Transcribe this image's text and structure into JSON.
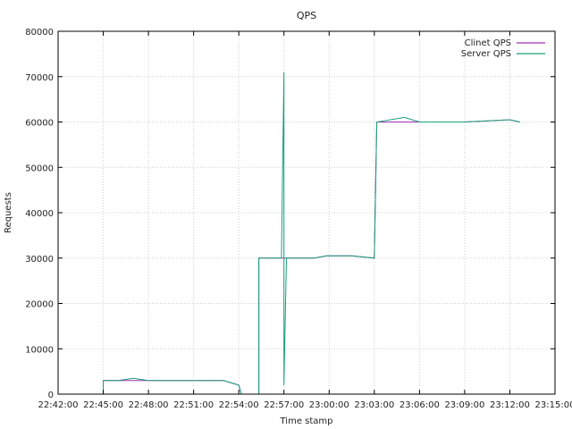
{
  "chart_data": {
    "type": "line",
    "title": "QPS",
    "xlabel": "Time stamp",
    "ylabel": "Requests",
    "x_axis": "time",
    "xlim": [
      "22:42:00",
      "23:15:00"
    ],
    "ylim": [
      0,
      80000
    ],
    "x_ticks": [
      "22:42:00",
      "22:45:00",
      "22:48:00",
      "22:51:00",
      "22:54:00",
      "22:57:00",
      "23:00:00",
      "23:03:00",
      "23:06:00",
      "23:09:00",
      "23:12:00",
      "23:15:00"
    ],
    "y_ticks": [
      0,
      10000,
      20000,
      30000,
      40000,
      50000,
      60000,
      70000,
      80000
    ],
    "grid": true,
    "legend_position": "top-right",
    "series": [
      {
        "name": "Clinet QPS",
        "color": "#9b30b0",
        "points": [
          [
            "22:45:00",
            0
          ],
          [
            "22:45:00",
            3000
          ],
          [
            "22:46:00",
            3000
          ],
          [
            "22:47:00",
            3000
          ],
          [
            "22:48:00",
            3000
          ],
          [
            "22:49:00",
            3000
          ],
          [
            "22:50:00",
            3000
          ],
          [
            "22:51:00",
            3000
          ],
          [
            "22:52:00",
            3000
          ],
          [
            "22:53:00",
            3000
          ],
          [
            "22:54:00",
            2000
          ],
          [
            "22:54:10",
            0
          ],
          [
            "22:55:20",
            0
          ],
          [
            "22:55:20",
            30000
          ],
          [
            "22:57:00",
            30000
          ],
          [
            "22:59:00",
            30000
          ],
          [
            "22:59:50",
            30500
          ],
          [
            "23:01:30",
            30500
          ],
          [
            "23:03:00",
            30000
          ],
          [
            "23:03:10",
            60000
          ],
          [
            "23:06:00",
            60000
          ],
          [
            "23:09:00",
            60000
          ],
          [
            "23:12:00",
            60500
          ],
          [
            "23:12:40",
            60000
          ]
        ]
      },
      {
        "name": "Server QPS",
        "color": "#1a9e7a",
        "points": [
          [
            "22:45:00",
            0
          ],
          [
            "22:45:00",
            3000
          ],
          [
            "22:46:00",
            3000
          ],
          [
            "22:47:00",
            3500
          ],
          [
            "22:48:00",
            3000
          ],
          [
            "22:49:00",
            3000
          ],
          [
            "22:50:00",
            3000
          ],
          [
            "22:51:00",
            3000
          ],
          [
            "22:52:00",
            3000
          ],
          [
            "22:53:00",
            3000
          ],
          [
            "22:54:00",
            2000
          ],
          [
            "22:54:10",
            0
          ],
          [
            "22:55:20",
            0
          ],
          [
            "22:55:20",
            30000
          ],
          [
            "22:56:50",
            30000
          ],
          [
            "22:57:00",
            71000
          ],
          [
            "22:57:00",
            2000
          ],
          [
            "22:57:10",
            30000
          ],
          [
            "22:59:00",
            30000
          ],
          [
            "22:59:50",
            30500
          ],
          [
            "23:01:30",
            30500
          ],
          [
            "23:03:00",
            30000
          ],
          [
            "23:03:10",
            60000
          ],
          [
            "23:05:00",
            61000
          ],
          [
            "23:06:00",
            60000
          ],
          [
            "23:09:00",
            60000
          ],
          [
            "23:12:00",
            60500
          ],
          [
            "23:12:40",
            60000
          ]
        ]
      }
    ]
  }
}
